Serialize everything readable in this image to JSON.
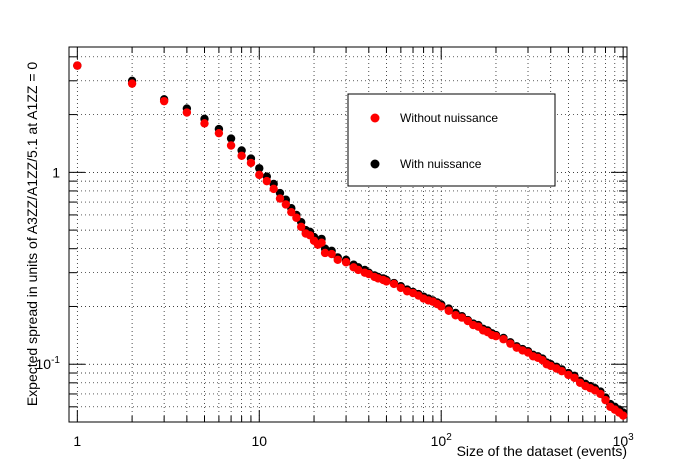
{
  "chart_data": {
    "type": "scatter",
    "title": "",
    "xlabel": "Size of the dataset (events)",
    "ylabel": "Expected spread in units of A3ZZ/A1ZZ/5.1 at A1ZZ = 0",
    "xscale": "log",
    "yscale": "log",
    "xlim": [
      0.9,
      1050
    ],
    "ylim": [
      0.05,
      4.5
    ],
    "grid": true,
    "legend_position": "top-right",
    "x_tick_labels": [
      {
        "value": 1,
        "label": "1"
      },
      {
        "value": 10,
        "label": "10"
      },
      {
        "value": 100,
        "label": "10^2"
      },
      {
        "value": 1000,
        "label": "10^3"
      }
    ],
    "y_tick_labels": [
      {
        "value": 1,
        "label": "1"
      },
      {
        "value": 0.1,
        "label": "10^-1"
      }
    ],
    "series": [
      {
        "name": "Without nuissance",
        "color": "#ff0000",
        "points": [
          [
            1,
            3.6
          ],
          [
            2,
            2.9
          ],
          [
            3,
            2.35
          ],
          [
            4,
            2.05
          ],
          [
            5,
            1.8
          ],
          [
            6,
            1.6
          ],
          [
            7,
            1.38
          ],
          [
            8,
            1.22
          ],
          [
            9,
            1.12
          ],
          [
            10,
            0.97
          ],
          [
            11,
            0.9
          ],
          [
            12,
            0.82
          ],
          [
            13,
            0.73
          ],
          [
            14,
            0.68
          ],
          [
            15,
            0.62
          ],
          [
            16,
            0.58
          ],
          [
            17,
            0.52
          ],
          [
            18,
            0.48
          ],
          [
            19,
            0.47
          ],
          [
            20,
            0.44
          ],
          [
            21,
            0.42
          ],
          [
            22,
            0.43
          ],
          [
            23,
            0.38
          ],
          [
            25,
            0.375
          ],
          [
            27,
            0.35
          ],
          [
            30,
            0.34
          ],
          [
            33,
            0.32
          ],
          [
            35,
            0.31
          ],
          [
            38,
            0.3
          ],
          [
            40,
            0.295
          ],
          [
            43,
            0.285
          ],
          [
            45,
            0.28
          ],
          [
            48,
            0.275
          ],
          [
            50,
            0.27
          ],
          [
            55,
            0.262
          ],
          [
            60,
            0.25
          ],
          [
            65,
            0.24
          ],
          [
            70,
            0.235
          ],
          [
            75,
            0.228
          ],
          [
            80,
            0.22
          ],
          [
            85,
            0.215
          ],
          [
            90,
            0.212
          ],
          [
            95,
            0.206
          ],
          [
            100,
            0.2
          ],
          [
            110,
            0.19
          ],
          [
            120,
            0.18
          ],
          [
            130,
            0.175
          ],
          [
            140,
            0.168
          ],
          [
            150,
            0.16
          ],
          [
            160,
            0.157
          ],
          [
            170,
            0.15
          ],
          [
            180,
            0.147
          ],
          [
            190,
            0.142
          ],
          [
            200,
            0.14
          ],
          [
            220,
            0.135
          ],
          [
            240,
            0.128
          ],
          [
            260,
            0.122
          ],
          [
            280,
            0.118
          ],
          [
            300,
            0.115
          ],
          [
            320,
            0.11
          ],
          [
            340,
            0.108
          ],
          [
            360,
            0.105
          ],
          [
            380,
            0.1
          ],
          [
            400,
            0.098
          ],
          [
            430,
            0.095
          ],
          [
            460,
            0.092
          ],
          [
            500,
            0.088
          ],
          [
            540,
            0.085
          ],
          [
            580,
            0.08
          ],
          [
            620,
            0.077
          ],
          [
            660,
            0.075
          ],
          [
            700,
            0.073
          ],
          [
            750,
            0.07
          ],
          [
            800,
            0.065
          ],
          [
            850,
            0.06
          ],
          [
            900,
            0.058
          ],
          [
            950,
            0.056
          ],
          [
            1000,
            0.054
          ]
        ]
      },
      {
        "name": "With nuissance",
        "color": "#000000",
        "points": [
          [
            1,
            3.6
          ],
          [
            2,
            3.0
          ],
          [
            3,
            2.4
          ],
          [
            4,
            2.15
          ],
          [
            5,
            1.9
          ],
          [
            6,
            1.68
          ],
          [
            7,
            1.5
          ],
          [
            8,
            1.3
          ],
          [
            9,
            1.18
          ],
          [
            10,
            1.05
          ],
          [
            11,
            0.95
          ],
          [
            12,
            0.87
          ],
          [
            13,
            0.78
          ],
          [
            14,
            0.72
          ],
          [
            15,
            0.65
          ],
          [
            16,
            0.6
          ],
          [
            17,
            0.55
          ],
          [
            18,
            0.5
          ],
          [
            19,
            0.49
          ],
          [
            20,
            0.46
          ],
          [
            21,
            0.44
          ],
          [
            22,
            0.45
          ],
          [
            23,
            0.4
          ],
          [
            25,
            0.39
          ],
          [
            27,
            0.36
          ],
          [
            30,
            0.35
          ],
          [
            33,
            0.33
          ],
          [
            35,
            0.32
          ],
          [
            38,
            0.31
          ],
          [
            40,
            0.3
          ],
          [
            43,
            0.29
          ],
          [
            45,
            0.285
          ],
          [
            48,
            0.28
          ],
          [
            50,
            0.275
          ],
          [
            55,
            0.265
          ],
          [
            60,
            0.255
          ],
          [
            65,
            0.245
          ],
          [
            70,
            0.238
          ],
          [
            75,
            0.232
          ],
          [
            80,
            0.225
          ],
          [
            85,
            0.22
          ],
          [
            90,
            0.215
          ],
          [
            95,
            0.21
          ],
          [
            100,
            0.205
          ],
          [
            110,
            0.195
          ],
          [
            120,
            0.185
          ],
          [
            130,
            0.178
          ],
          [
            140,
            0.17
          ],
          [
            150,
            0.163
          ],
          [
            160,
            0.16
          ],
          [
            170,
            0.153
          ],
          [
            180,
            0.15
          ],
          [
            190,
            0.145
          ],
          [
            200,
            0.142
          ],
          [
            220,
            0.137
          ],
          [
            240,
            0.13
          ],
          [
            260,
            0.124
          ],
          [
            280,
            0.12
          ],
          [
            300,
            0.117
          ],
          [
            320,
            0.112
          ],
          [
            340,
            0.11
          ],
          [
            360,
            0.107
          ],
          [
            380,
            0.102
          ],
          [
            400,
            0.1
          ],
          [
            430,
            0.097
          ],
          [
            460,
            0.094
          ],
          [
            500,
            0.09
          ],
          [
            540,
            0.087
          ],
          [
            580,
            0.082
          ],
          [
            620,
            0.079
          ],
          [
            660,
            0.077
          ],
          [
            700,
            0.075
          ],
          [
            750,
            0.072
          ],
          [
            800,
            0.067
          ],
          [
            850,
            0.062
          ],
          [
            900,
            0.06
          ],
          [
            950,
            0.058
          ],
          [
            1000,
            0.056
          ]
        ]
      }
    ]
  }
}
